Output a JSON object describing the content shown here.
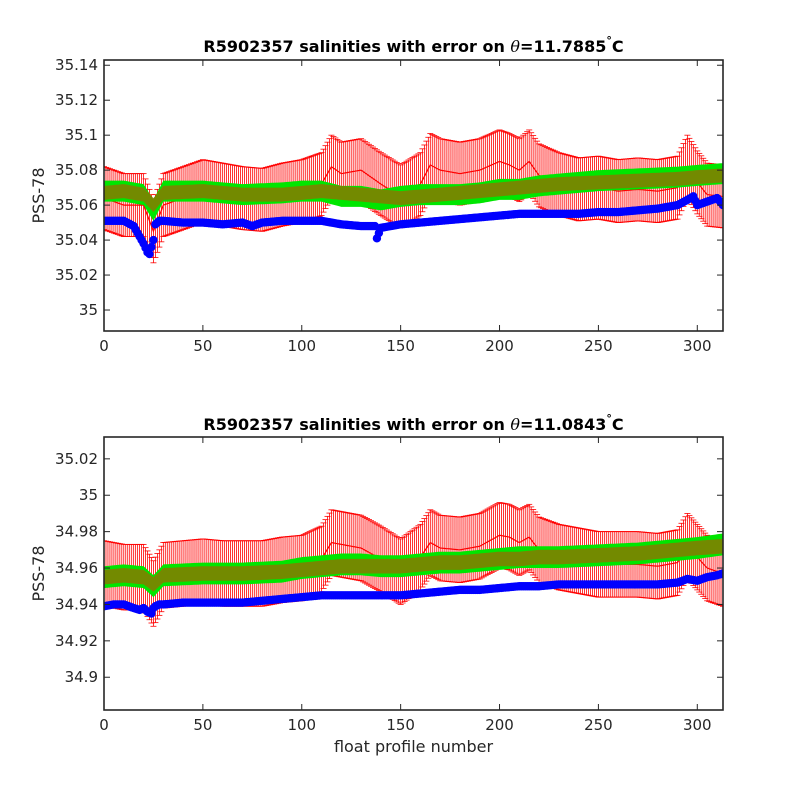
{
  "chart_data": [
    {
      "type": "line",
      "title_prefix": "R5902357 salinities with error on ",
      "title_theta": "θ",
      "title_value": "=11.7885",
      "title_degree": "°",
      "title_unit": "C",
      "ylabel": "PSS-78",
      "xlabel": "",
      "xlim": [
        0,
        313
      ],
      "ylim": [
        34.988,
        35.143
      ],
      "xticks": [
        0,
        50,
        100,
        150,
        200,
        250,
        300
      ],
      "xtick_labels": [
        "0",
        "50",
        "100",
        "150",
        "200",
        "250",
        "300"
      ],
      "yticks": [
        35.0,
        35.02,
        35.04,
        35.06,
        35.08,
        35.1,
        35.12,
        35.14
      ],
      "ytick_labels": [
        "35",
        "35.02",
        "35.04",
        "35.06",
        "35.08",
        "35.1",
        "35.12",
        "35.14"
      ],
      "grid": false,
      "series": [
        {
          "role": "mapped-with-error",
          "color": "#ff0000",
          "error": 0.018,
          "x": [
            0,
            10,
            20,
            25,
            30,
            40,
            50,
            60,
            70,
            80,
            90,
            100,
            110,
            115,
            120,
            130,
            140,
            150,
            160,
            165,
            170,
            180,
            190,
            200,
            205,
            210,
            215,
            220,
            230,
            240,
            250,
            260,
            270,
            280,
            290,
            295,
            300,
            305,
            313
          ],
          "values": [
            35.064,
            35.06,
            35.06,
            35.045,
            35.06,
            35.064,
            35.068,
            35.066,
            35.064,
            35.063,
            35.066,
            35.068,
            35.072,
            35.082,
            35.078,
            35.08,
            35.072,
            35.065,
            35.072,
            35.083,
            35.08,
            35.078,
            35.08,
            35.085,
            35.083,
            35.08,
            35.085,
            35.077,
            35.072,
            35.069,
            35.07,
            35.068,
            35.069,
            35.068,
            35.07,
            35.082,
            35.073,
            35.066,
            35.065
          ]
        },
        {
          "role": "climatology",
          "color": "#00e600",
          "x": [
            0,
            10,
            20,
            25,
            30,
            50,
            70,
            90,
            100,
            110,
            120,
            130,
            140,
            150,
            160,
            170,
            180,
            190,
            200,
            210,
            220,
            230,
            250,
            270,
            290,
            300,
            313
          ],
          "values": [
            35.068,
            35.068,
            35.066,
            35.057,
            35.068,
            35.068,
            35.066,
            35.067,
            35.068,
            35.068,
            35.065,
            35.065,
            35.063,
            35.065,
            35.066,
            35.066,
            35.066,
            35.067,
            35.069,
            35.069,
            35.071,
            35.072,
            35.074,
            35.075,
            35.076,
            35.077,
            35.078
          ]
        },
        {
          "role": "calibrated",
          "color": "#808000",
          "x": [
            0,
            10,
            20,
            25,
            30,
            50,
            70,
            90,
            100,
            110,
            120,
            130,
            140,
            150,
            160,
            170,
            180,
            190,
            200,
            210,
            220,
            230,
            250,
            270,
            290,
            300,
            313
          ],
          "values": [
            35.067,
            35.068,
            35.066,
            35.06,
            35.067,
            35.068,
            35.066,
            35.066,
            35.067,
            35.068,
            35.067,
            35.066,
            35.065,
            35.064,
            35.065,
            35.066,
            35.067,
            35.068,
            35.069,
            35.07,
            35.071,
            35.072,
            35.073,
            35.074,
            35.075,
            35.076,
            35.077
          ]
        },
        {
          "role": "float-raw",
          "color": "#0000ff",
          "x": [
            0,
            5,
            10,
            15,
            18,
            20,
            22,
            23,
            24,
            25,
            26,
            28,
            30,
            40,
            50,
            60,
            70,
            75,
            80,
            90,
            100,
            110,
            120,
            130,
            137,
            138,
            140,
            150,
            160,
            170,
            180,
            190,
            200,
            210,
            220,
            230,
            240,
            250,
            260,
            270,
            280,
            290,
            295,
            298,
            300,
            305,
            310,
            313
          ],
          "values": [
            35.051,
            35.051,
            35.051,
            35.048,
            35.042,
            35.038,
            35.033,
            35.032,
            35.036,
            35.04,
            35.049,
            35.051,
            35.051,
            35.05,
            35.05,
            35.049,
            35.05,
            35.048,
            35.05,
            35.051,
            35.051,
            35.051,
            35.049,
            35.048,
            35.048,
            35.041,
            35.047,
            35.049,
            35.05,
            35.051,
            35.052,
            35.053,
            35.054,
            35.055,
            35.055,
            35.055,
            35.055,
            35.056,
            35.056,
            35.057,
            35.058,
            35.06,
            35.063,
            35.065,
            35.06,
            35.062,
            35.064,
            35.06
          ]
        }
      ]
    },
    {
      "type": "line",
      "title_prefix": "R5902357 salinities with error on ",
      "title_theta": "θ",
      "title_value": "=11.0843",
      "title_degree": "°",
      "title_unit": "C",
      "ylabel": "PSS-78",
      "xlabel": "float profile number",
      "xlim": [
        0,
        313
      ],
      "ylim": [
        34.882,
        35.032
      ],
      "xticks": [
        0,
        50,
        100,
        150,
        200,
        250,
        300
      ],
      "xtick_labels": [
        "0",
        "50",
        "100",
        "150",
        "200",
        "250",
        "300"
      ],
      "yticks": [
        34.9,
        34.92,
        34.94,
        34.96,
        34.98,
        35.0,
        35.02
      ],
      "ytick_labels": [
        "34.9",
        "34.92",
        "34.94",
        "34.96",
        "34.98",
        "35",
        "35.02"
      ],
      "grid": false,
      "series": [
        {
          "role": "mapped-with-error",
          "color": "#ff0000",
          "error": 0.018,
          "x": [
            0,
            10,
            20,
            25,
            30,
            40,
            50,
            60,
            70,
            80,
            90,
            100,
            110,
            115,
            120,
            130,
            140,
            150,
            160,
            165,
            170,
            180,
            190,
            200,
            205,
            210,
            215,
            220,
            230,
            240,
            250,
            260,
            270,
            280,
            290,
            295,
            300,
            305,
            313
          ],
          "values": [
            34.957,
            34.955,
            34.955,
            34.946,
            34.956,
            34.957,
            34.958,
            34.957,
            34.957,
            34.957,
            34.959,
            34.96,
            34.965,
            34.974,
            34.973,
            34.971,
            34.965,
            34.958,
            34.966,
            34.974,
            34.971,
            34.97,
            34.972,
            34.978,
            34.977,
            34.974,
            34.977,
            34.97,
            34.966,
            34.964,
            34.962,
            34.962,
            34.962,
            34.961,
            34.963,
            34.972,
            34.966,
            34.96,
            34.957
          ]
        },
        {
          "role": "climatology",
          "color": "#00e600",
          "x": [
            0,
            10,
            20,
            25,
            30,
            50,
            70,
            90,
            100,
            110,
            120,
            130,
            140,
            150,
            160,
            170,
            180,
            190,
            200,
            210,
            220,
            230,
            250,
            270,
            290,
            300,
            313
          ],
          "values": [
            34.955,
            34.956,
            34.955,
            34.95,
            34.956,
            34.957,
            34.957,
            34.958,
            34.96,
            34.961,
            34.962,
            34.962,
            34.961,
            34.961,
            34.962,
            34.963,
            34.963,
            34.964,
            34.965,
            34.966,
            34.966,
            34.966,
            34.967,
            34.968,
            34.97,
            34.971,
            34.973
          ]
        },
        {
          "role": "calibrated",
          "color": "#808000",
          "x": [
            0,
            10,
            20,
            25,
            30,
            50,
            70,
            90,
            100,
            110,
            120,
            130,
            140,
            150,
            160,
            170,
            180,
            190,
            200,
            210,
            220,
            230,
            250,
            270,
            290,
            300,
            313
          ],
          "values": [
            34.955,
            34.956,
            34.955,
            34.951,
            34.956,
            34.957,
            34.957,
            34.958,
            34.959,
            34.96,
            34.961,
            34.961,
            34.961,
            34.961,
            34.962,
            34.963,
            34.963,
            34.964,
            34.965,
            34.965,
            34.966,
            34.966,
            34.967,
            34.968,
            34.97,
            34.971,
            34.972
          ]
        },
        {
          "role": "float-raw",
          "color": "#0000ff",
          "x": [
            0,
            5,
            10,
            15,
            18,
            20,
            22,
            24,
            25,
            26,
            28,
            30,
            40,
            50,
            60,
            70,
            80,
            90,
            100,
            110,
            120,
            130,
            140,
            150,
            160,
            170,
            180,
            190,
            200,
            210,
            220,
            230,
            240,
            250,
            260,
            270,
            280,
            290,
            295,
            300,
            305,
            310,
            313
          ],
          "values": [
            34.939,
            34.94,
            34.94,
            34.938,
            34.937,
            34.938,
            34.936,
            34.935,
            34.938,
            34.939,
            34.94,
            34.94,
            34.941,
            34.941,
            34.941,
            34.941,
            34.942,
            34.943,
            34.944,
            34.945,
            34.945,
            34.945,
            34.945,
            34.945,
            34.946,
            34.947,
            34.948,
            34.948,
            34.949,
            34.95,
            34.95,
            34.951,
            34.951,
            34.951,
            34.951,
            34.951,
            34.951,
            34.952,
            34.954,
            34.953,
            34.955,
            34.956,
            34.957
          ]
        }
      ]
    }
  ]
}
